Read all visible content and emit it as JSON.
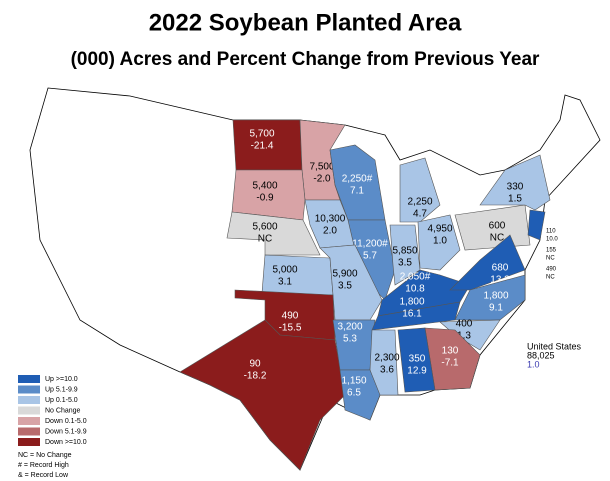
{
  "header": {
    "title": "2022 Soybean Planted Area",
    "subtitle": "(000) Acres and Percent Change from Previous Year"
  },
  "states": [
    {
      "acres": "5,700",
      "change": "-21.4",
      "color": "#8b1c1c"
    },
    {
      "acres": "7,500",
      "change": "-2.0",
      "color": "#d8a3a6"
    },
    {
      "acres": "5,400",
      "change": "-0.9",
      "color": "#d8a3a6"
    },
    {
      "acres": "5,600",
      "change": "NC",
      "color": "#d9d9d9"
    },
    {
      "acres": "2,250#",
      "change": "7.1",
      "color": "#5b8cc8"
    },
    {
      "acres": "2,250",
      "change": "4.7",
      "color": "#a9c5e6"
    },
    {
      "acres": "10,300",
      "change": "2.0",
      "color": "#a9c5e6"
    },
    {
      "acres": "11,200#",
      "change": "5.7",
      "color": "#5b8cc8"
    },
    {
      "acres": "5,850",
      "change": "3.5",
      "color": "#a9c5e6"
    },
    {
      "acres": "4,950",
      "change": "1.0",
      "color": "#a9c5e6"
    },
    {
      "acres": "600",
      "change": "NC",
      "color": "#d9d9d9"
    },
    {
      "acres": "330",
      "change": "1.5",
      "color": "#a9c5e6"
    },
    {
      "acres": "5,000",
      "change": "3.1",
      "color": "#a9c5e6"
    },
    {
      "acres": "5,900",
      "change": "3.5",
      "color": "#a9c5e6"
    },
    {
      "acres": "2,050#",
      "change": "10.8",
      "color": "#1f5db4"
    },
    {
      "acres": "680",
      "change": "13.3",
      "color": "#1f5db4"
    },
    {
      "acres": "490",
      "change": "-15.5",
      "color": "#8b1c1c"
    },
    {
      "acres": "90",
      "change": "-18.2",
      "color": "#8b1c1c"
    },
    {
      "acres": "3,200",
      "change": "5.3",
      "color": "#5b8cc8"
    },
    {
      "acres": "1,800",
      "change": "16.1",
      "color": "#1f5db4"
    },
    {
      "acres": "1,800",
      "change": "9.1",
      "color": "#5b8cc8"
    },
    {
      "acres": "400",
      "change": "1.3",
      "color": "#a9c5e6"
    },
    {
      "acres": "130",
      "change": "-7.1",
      "color": "#b86a6c"
    },
    {
      "acres": "2,300",
      "change": "3.6",
      "color": "#a9c5e6"
    },
    {
      "acres": "350",
      "change": "12.9",
      "color": "#1f5db4"
    },
    {
      "acres": "1,150",
      "change": "6.5",
      "color": "#5b8cc8"
    }
  ],
  "small_states": [
    {
      "acres": "110",
      "change": "10.0"
    },
    {
      "acres": "155",
      "change": "NC"
    },
    {
      "acres": "490",
      "change": "NC"
    }
  ],
  "total": {
    "label": "United States",
    "acres": "88,025",
    "change": "1.0"
  },
  "legend": [
    {
      "label": "Up >=10.0",
      "color": "#1f5db4"
    },
    {
      "label": "Up 5.1-9.9",
      "color": "#5b8cc8"
    },
    {
      "label": "Up 0.1-5.0",
      "color": "#a9c5e6"
    },
    {
      "label": "No Change",
      "color": "#d9d9d9"
    },
    {
      "label": "Down 0.1-5.0",
      "color": "#d8a3a6"
    },
    {
      "label": "Down 5.1-9.9",
      "color": "#b86a6c"
    },
    {
      "label": "Down >=10.0",
      "color": "#8b1c1c"
    }
  ],
  "notes": [
    "NC = No Change",
    "# = Record High",
    "& = Record Low"
  ]
}
